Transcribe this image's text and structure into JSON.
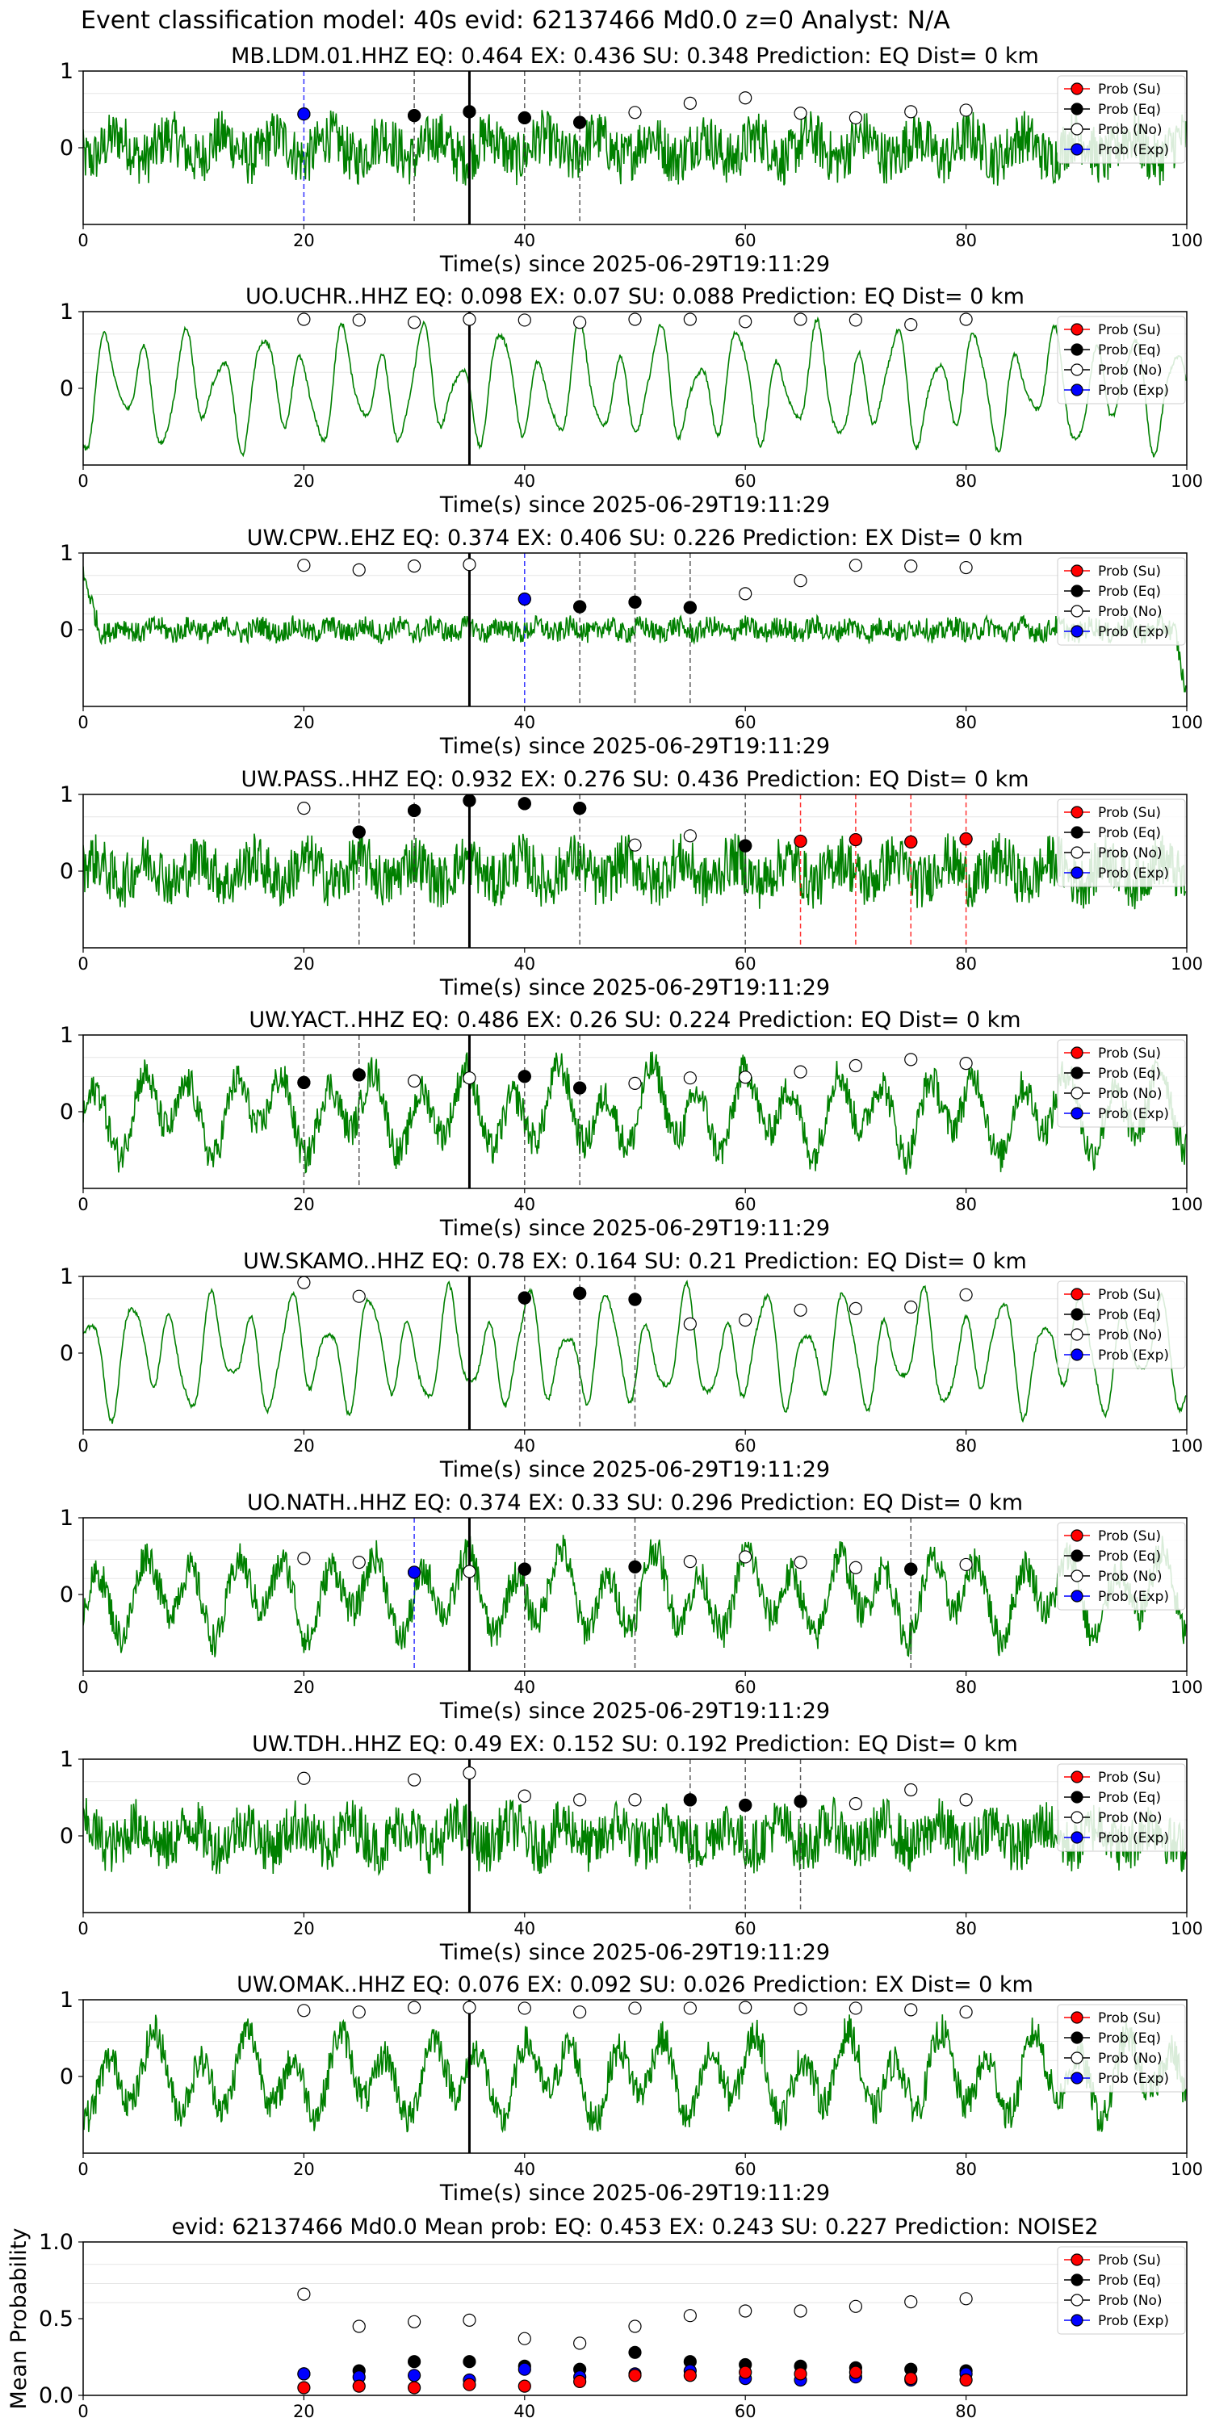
{
  "suptitle": "Event classification model: 40s evid: 62137466 Md0.0 z=0 Analyst: N/A",
  "xlabel": "Time(s) since 2025-06-29T19:11:29",
  "legend": [
    "Prob (Su)",
    "Prob (Eq)",
    "Prob (No)",
    "Prob (Exp)"
  ],
  "colors": {
    "waveform": "#008000",
    "su": "#ff0000",
    "eq": "#000000",
    "no": "#ffffff",
    "exp": "#0000ff",
    "pick_line": "#000000"
  },
  "chart_data": [
    {
      "type": "line",
      "title": "MB.LDM.01.HHZ   EQ: 0.464  EX: 0.436  SU: 0.348   Prediction: EQ    Dist= 0 km",
      "xlim": [
        0,
        100
      ],
      "ylim": [
        -1,
        1
      ],
      "xticks": [
        0,
        20,
        40,
        60,
        80,
        100
      ],
      "yticks": [
        1,
        0
      ],
      "pick_time": 35,
      "style": "noisy",
      "no": {
        "x": [
          20,
          30,
          35,
          40,
          45,
          50,
          55,
          60,
          65,
          70,
          75,
          80
        ],
        "y": [
          0.44,
          0.42,
          0.47,
          0.39,
          0.33,
          0.46,
          0.58,
          0.65,
          0.45,
          0.39,
          0.47,
          0.49
        ]
      },
      "eq": {
        "x": [
          30,
          35,
          40,
          45
        ],
        "y": [
          0.42,
          0.47,
          0.39,
          0.33
        ]
      },
      "exp": {
        "x": [
          20
        ],
        "y": [
          0.44
        ]
      },
      "su": {
        "x": [],
        "y": []
      },
      "vlines": [
        {
          "x": 20,
          "c": "exp"
        },
        {
          "x": 30,
          "c": "eq"
        },
        {
          "x": 40,
          "c": "eq"
        },
        {
          "x": 45,
          "c": "eq"
        }
      ]
    },
    {
      "type": "line",
      "title": "UO.UCHR..HHZ   EQ: 0.098  EX: 0.07  SU: 0.088   Prediction: EQ    Dist= 0 km",
      "xlim": [
        0,
        100
      ],
      "ylim": [
        -1,
        1
      ],
      "xticks": [
        0,
        20,
        40,
        60,
        80,
        100
      ],
      "yticks": [
        1,
        0
      ],
      "pick_time": 35,
      "style": "smooth",
      "no": {
        "x": [
          20,
          25,
          30,
          35,
          40,
          45,
          50,
          55,
          60,
          65,
          70,
          75,
          80
        ],
        "y": [
          0.9,
          0.89,
          0.86,
          0.9,
          0.89,
          0.86,
          0.9,
          0.9,
          0.87,
          0.9,
          0.89,
          0.83,
          0.9
        ]
      },
      "eq": {
        "x": [],
        "y": []
      },
      "exp": {
        "x": [],
        "y": []
      },
      "su": {
        "x": [],
        "y": []
      },
      "vlines": []
    },
    {
      "type": "line",
      "title": "UW.CPW..EHZ   EQ: 0.374  EX: 0.406  SU: 0.226   Prediction: EX    Dist= 0 km",
      "xlim": [
        0,
        100
      ],
      "ylim": [
        -1,
        1
      ],
      "xticks": [
        0,
        20,
        40,
        60,
        80,
        100
      ],
      "yticks": [
        1,
        0
      ],
      "pick_time": 35,
      "style": "quiet",
      "no": {
        "x": [
          20,
          25,
          30,
          35,
          40,
          45,
          50,
          55,
          60,
          65,
          70,
          75,
          80
        ],
        "y": [
          0.84,
          0.78,
          0.83,
          0.85,
          0.4,
          0.3,
          0.36,
          0.29,
          0.47,
          0.64,
          0.84,
          0.83,
          0.81
        ]
      },
      "eq": {
        "x": [
          45,
          50,
          55
        ],
        "y": [
          0.3,
          0.36,
          0.29
        ]
      },
      "exp": {
        "x": [
          40
        ],
        "y": [
          0.4
        ]
      },
      "su": {
        "x": [],
        "y": []
      },
      "vlines": [
        {
          "x": 40,
          "c": "exp"
        },
        {
          "x": 45,
          "c": "eq"
        },
        {
          "x": 50,
          "c": "eq"
        },
        {
          "x": 55,
          "c": "eq"
        }
      ]
    },
    {
      "type": "line",
      "title": "UW.PASS..HHZ   EQ: 0.932  EX: 0.276  SU: 0.436   Prediction: EQ    Dist= 0 km",
      "xlim": [
        0,
        100
      ],
      "ylim": [
        -1,
        1
      ],
      "xticks": [
        0,
        20,
        40,
        60,
        80,
        100
      ],
      "yticks": [
        1,
        0
      ],
      "pick_time": 35,
      "style": "noisy",
      "no": {
        "x": [
          20,
          25,
          30,
          35,
          40,
          45,
          50,
          55,
          60,
          65,
          70,
          75,
          80
        ],
        "y": [
          0.82,
          0.51,
          0.79,
          0.92,
          0.88,
          0.82,
          0.34,
          0.46,
          0.33,
          0.39,
          0.41,
          0.38,
          0.42
        ]
      },
      "eq": {
        "x": [
          25,
          30,
          35,
          40,
          45,
          60
        ],
        "y": [
          0.51,
          0.79,
          0.92,
          0.88,
          0.82,
          0.33
        ]
      },
      "exp": {
        "x": [],
        "y": []
      },
      "su": {
        "x": [
          65,
          70,
          75,
          80
        ],
        "y": [
          0.39,
          0.41,
          0.38,
          0.42
        ]
      },
      "vlines": [
        {
          "x": 25,
          "c": "eq"
        },
        {
          "x": 30,
          "c": "eq"
        },
        {
          "x": 45,
          "c": "eq"
        },
        {
          "x": 60,
          "c": "eq"
        },
        {
          "x": 65,
          "c": "su"
        },
        {
          "x": 70,
          "c": "su"
        },
        {
          "x": 75,
          "c": "su"
        },
        {
          "x": 80,
          "c": "su"
        }
      ]
    },
    {
      "type": "line",
      "title": "UW.YACT..HHZ   EQ: 0.486  EX: 0.26  SU: 0.224   Prediction: EQ    Dist= 0 km",
      "xlim": [
        0,
        100
      ],
      "ylim": [
        -1,
        1
      ],
      "xticks": [
        0,
        20,
        40,
        60,
        80,
        100
      ],
      "yticks": [
        1,
        0
      ],
      "pick_time": 35,
      "style": "mixed",
      "no": {
        "x": [
          20,
          25,
          30,
          35,
          40,
          45,
          50,
          55,
          60,
          65,
          70,
          75,
          80
        ],
        "y": [
          0.38,
          0.48,
          0.4,
          0.44,
          0.46,
          0.31,
          0.37,
          0.44,
          0.45,
          0.52,
          0.6,
          0.68,
          0.63
        ]
      },
      "eq": {
        "x": [
          20,
          25,
          40,
          45
        ],
        "y": [
          0.38,
          0.48,
          0.46,
          0.31
        ]
      },
      "exp": {
        "x": [],
        "y": []
      },
      "su": {
        "x": [],
        "y": []
      },
      "vlines": [
        {
          "x": 20,
          "c": "eq"
        },
        {
          "x": 25,
          "c": "eq"
        },
        {
          "x": 40,
          "c": "eq"
        },
        {
          "x": 45,
          "c": "eq"
        }
      ]
    },
    {
      "type": "line",
      "title": "UW.SKAMO..HHZ   EQ: 0.78  EX: 0.164  SU: 0.21   Prediction: EQ    Dist= 0 km",
      "xlim": [
        0,
        100
      ],
      "ylim": [
        -1,
        1
      ],
      "xticks": [
        0,
        20,
        40,
        60,
        80,
        100
      ],
      "yticks": [
        1,
        0
      ],
      "pick_time": 35,
      "style": "smooth",
      "no": {
        "x": [
          20,
          25,
          40,
          45,
          50,
          55,
          60,
          65,
          70,
          75,
          80
        ],
        "y": [
          0.92,
          0.74,
          0.72,
          0.78,
          0.7,
          0.38,
          0.43,
          0.56,
          0.58,
          0.6,
          0.76
        ]
      },
      "eq": {
        "x": [
          40,
          45,
          50
        ],
        "y": [
          0.72,
          0.78,
          0.7
        ]
      },
      "exp": {
        "x": [],
        "y": []
      },
      "su": {
        "x": [],
        "y": []
      },
      "vlines": [
        {
          "x": 40,
          "c": "eq"
        },
        {
          "x": 45,
          "c": "eq"
        },
        {
          "x": 50,
          "c": "eq"
        }
      ]
    },
    {
      "type": "line",
      "title": "UO.NATH..HHZ   EQ: 0.374  EX: 0.33  SU: 0.296   Prediction: EQ    Dist= 0 km",
      "xlim": [
        0,
        100
      ],
      "ylim": [
        -1,
        1
      ],
      "xticks": [
        0,
        20,
        40,
        60,
        80,
        100
      ],
      "yticks": [
        1,
        0
      ],
      "pick_time": 35,
      "style": "mixed",
      "no": {
        "x": [
          20,
          25,
          30,
          35,
          40,
          50,
          55,
          60,
          65,
          70,
          75,
          80
        ],
        "y": [
          0.47,
          0.42,
          0.29,
          0.3,
          0.33,
          0.36,
          0.43,
          0.49,
          0.42,
          0.35,
          0.33,
          0.39
        ]
      },
      "eq": {
        "x": [
          40,
          50,
          75
        ],
        "y": [
          0.33,
          0.36,
          0.33
        ]
      },
      "exp": {
        "x": [
          30
        ],
        "y": [
          0.29
        ]
      },
      "su": {
        "x": [],
        "y": []
      },
      "vlines": [
        {
          "x": 30,
          "c": "exp"
        },
        {
          "x": 40,
          "c": "eq"
        },
        {
          "x": 50,
          "c": "eq"
        },
        {
          "x": 75,
          "c": "eq"
        }
      ]
    },
    {
      "type": "line",
      "title": "UW.TDH..HHZ   EQ: 0.49  EX: 0.152  SU: 0.192   Prediction: EQ    Dist= 0 km",
      "xlim": [
        0,
        100
      ],
      "ylim": [
        -1,
        1
      ],
      "xticks": [
        0,
        20,
        40,
        60,
        80,
        100
      ],
      "yticks": [
        1,
        0
      ],
      "pick_time": 35,
      "style": "noisy",
      "no": {
        "x": [
          20,
          30,
          35,
          40,
          45,
          50,
          55,
          60,
          65,
          70,
          75,
          80
        ],
        "y": [
          0.75,
          0.73,
          0.82,
          0.52,
          0.47,
          0.47,
          0.47,
          0.4,
          0.45,
          0.42,
          0.6,
          0.47
        ]
      },
      "eq": {
        "x": [
          55,
          60,
          65
        ],
        "y": [
          0.47,
          0.4,
          0.45
        ]
      },
      "exp": {
        "x": [],
        "y": []
      },
      "su": {
        "x": [],
        "y": []
      },
      "vlines": [
        {
          "x": 55,
          "c": "eq"
        },
        {
          "x": 60,
          "c": "eq"
        },
        {
          "x": 65,
          "c": "eq"
        }
      ]
    },
    {
      "type": "line",
      "title": "UW.OMAK..HHZ   EQ: 0.076  EX: 0.092  SU: 0.026   Prediction: EX    Dist= 0 km",
      "xlim": [
        0,
        100
      ],
      "ylim": [
        -1,
        1
      ],
      "xticks": [
        0,
        20,
        40,
        60,
        80,
        100
      ],
      "yticks": [
        1,
        0
      ],
      "pick_time": 35,
      "style": "mixed",
      "no": {
        "x": [
          20,
          25,
          30,
          35,
          40,
          45,
          50,
          55,
          60,
          65,
          70,
          75,
          80
        ],
        "y": [
          0.86,
          0.84,
          0.9,
          0.9,
          0.89,
          0.84,
          0.89,
          0.89,
          0.9,
          0.88,
          0.89,
          0.87,
          0.84
        ]
      },
      "eq": {
        "x": [],
        "y": []
      },
      "exp": {
        "x": [],
        "y": []
      },
      "su": {
        "x": [],
        "y": []
      },
      "vlines": []
    },
    {
      "type": "scatter",
      "title": "evid: 62137466  Md0.0   Mean prob:    EQ: 0.453  EX: 0.243  SU: 0.227   Prediction: NOISE2",
      "ylabel": "Mean Probability",
      "xlim": [
        0,
        100
      ],
      "ylim": [
        0,
        1
      ],
      "xticks": [
        0,
        20,
        40,
        60,
        80
      ],
      "yticks": [
        1.0,
        0.5,
        0.0
      ],
      "no": {
        "x": [
          20,
          25,
          30,
          35,
          40,
          45,
          50,
          55,
          60,
          65,
          70,
          75,
          80
        ],
        "y": [
          0.66,
          0.45,
          0.48,
          0.49,
          0.37,
          0.34,
          0.45,
          0.52,
          0.55,
          0.55,
          0.58,
          0.61,
          0.63
        ]
      },
      "eq": {
        "x": [
          20,
          25,
          30,
          35,
          40,
          45,
          50,
          55,
          60,
          65,
          70,
          75,
          80
        ],
        "y": [
          0.14,
          0.16,
          0.22,
          0.22,
          0.19,
          0.17,
          0.28,
          0.22,
          0.2,
          0.19,
          0.18,
          0.17,
          0.16
        ]
      },
      "exp": {
        "x": [
          20,
          25,
          30,
          35,
          40,
          45,
          50,
          55,
          60,
          65,
          70,
          75,
          80
        ],
        "y": [
          0.14,
          0.12,
          0.13,
          0.1,
          0.17,
          0.12,
          0.14,
          0.16,
          0.11,
          0.1,
          0.12,
          0.1,
          0.14
        ]
      },
      "su": {
        "x": [
          20,
          25,
          30,
          35,
          40,
          45,
          50,
          55,
          60,
          65,
          70,
          75,
          80
        ],
        "y": [
          0.05,
          0.06,
          0.05,
          0.07,
          0.06,
          0.09,
          0.13,
          0.13,
          0.15,
          0.14,
          0.15,
          0.11,
          0.1
        ]
      }
    }
  ]
}
